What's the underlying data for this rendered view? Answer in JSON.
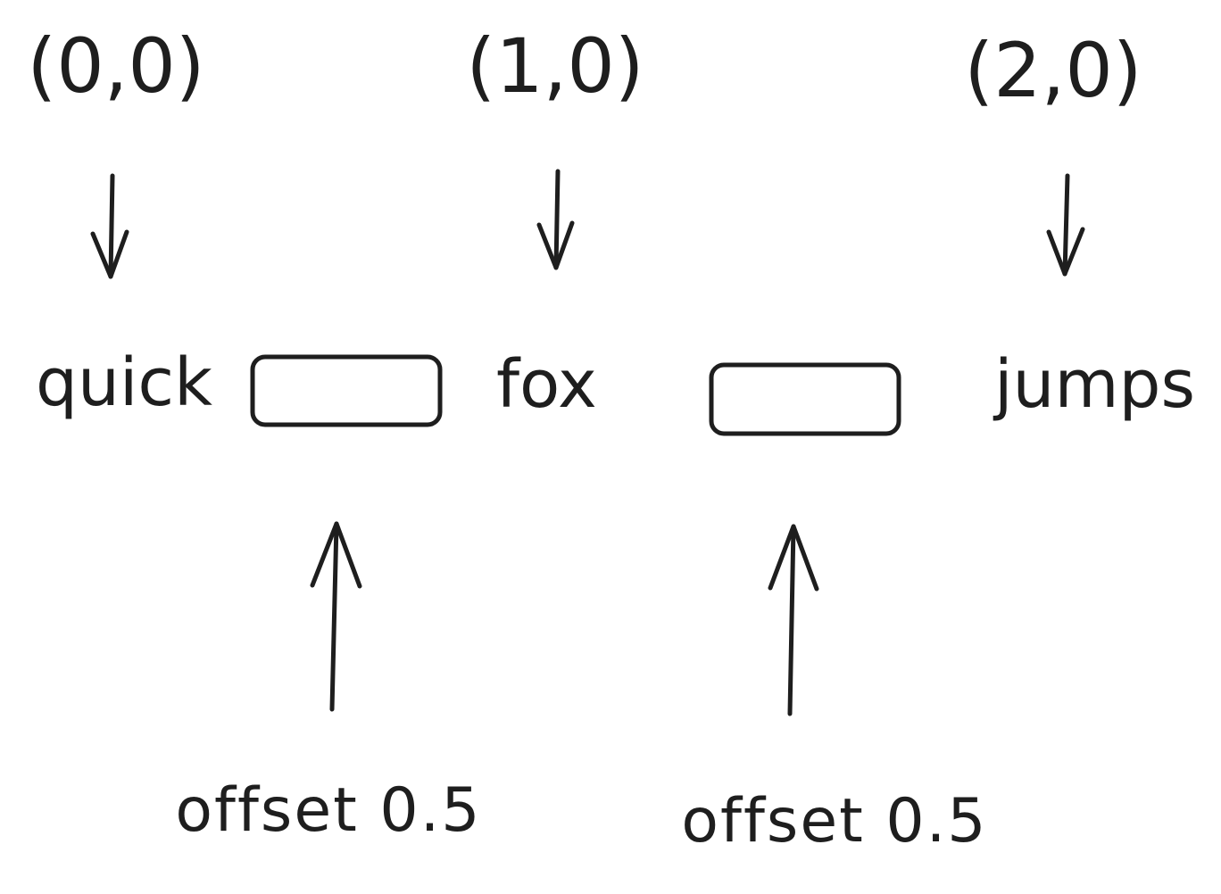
{
  "diagram": {
    "coordinates": [
      {
        "label": "(0,0)"
      },
      {
        "label": "(1,0)"
      },
      {
        "label": "(2,0)"
      }
    ],
    "words": [
      {
        "label": "quick"
      },
      {
        "label": "fox"
      },
      {
        "label": "jumps"
      }
    ],
    "offsets": [
      {
        "label": "offset 0.5"
      },
      {
        "label": "offset 0.5"
      }
    ],
    "stroke_color": "#1e1e1e",
    "background_color": "#ffffff"
  }
}
